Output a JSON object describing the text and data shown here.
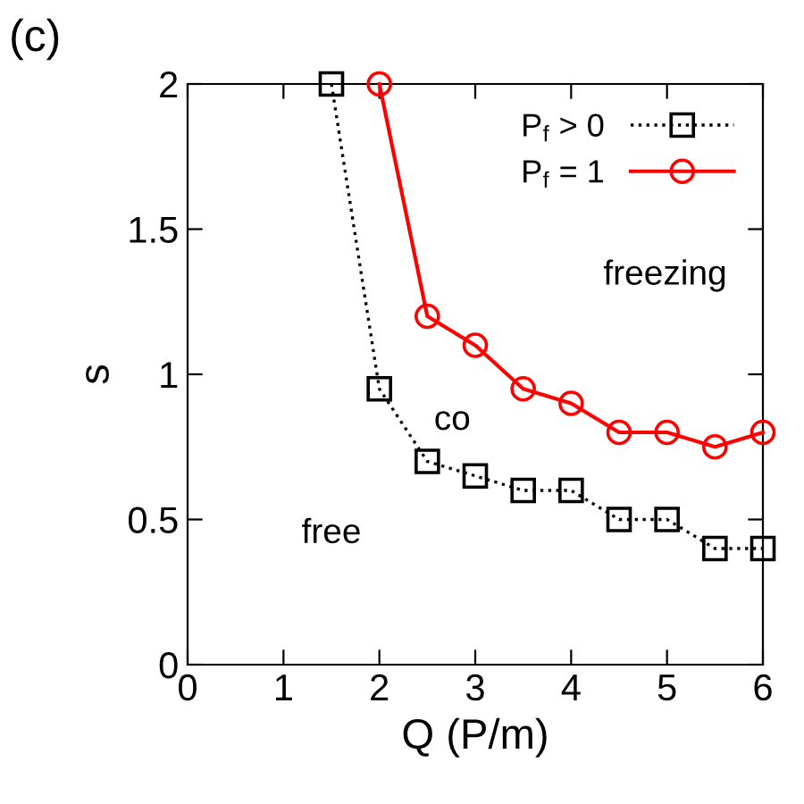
{
  "chart_data": {
    "type": "line",
    "xlabel": "Q (P/m)",
    "ylabel": "s",
    "x": [
      1.5,
      2,
      2.5,
      3,
      3.5,
      4,
      4.5,
      5,
      5.5,
      6
    ],
    "series": [
      {
        "name": "P$_{f}$ > 0",
        "color": "#000000",
        "marker": "square",
        "line_style": "dotted",
        "values": [
          2,
          0.95,
          0.7,
          0.65,
          0.6,
          0.6,
          0.5,
          0.5,
          0.4,
          0.4
        ]
      },
      {
        "name": "P$_{f}$ = 1",
        "color": "#ff0000",
        "marker": "circle",
        "line_style": "solid",
        "values": [
          null,
          2,
          1.2,
          1.1,
          0.95,
          0.9,
          0.8,
          0.8,
          0.75,
          0.8
        ]
      }
    ],
    "xlim": [
      0,
      6
    ],
    "ylim": [
      0,
      2
    ],
    "xticks": [
      0,
      1,
      2,
      3,
      4,
      5,
      6
    ],
    "yticks": [
      0,
      0.5,
      1,
      1.5,
      2
    ],
    "legend": "top right",
    "grid": false,
    "annotations": [
      "(c)",
      "freezing",
      "co",
      "free"
    ]
  }
}
